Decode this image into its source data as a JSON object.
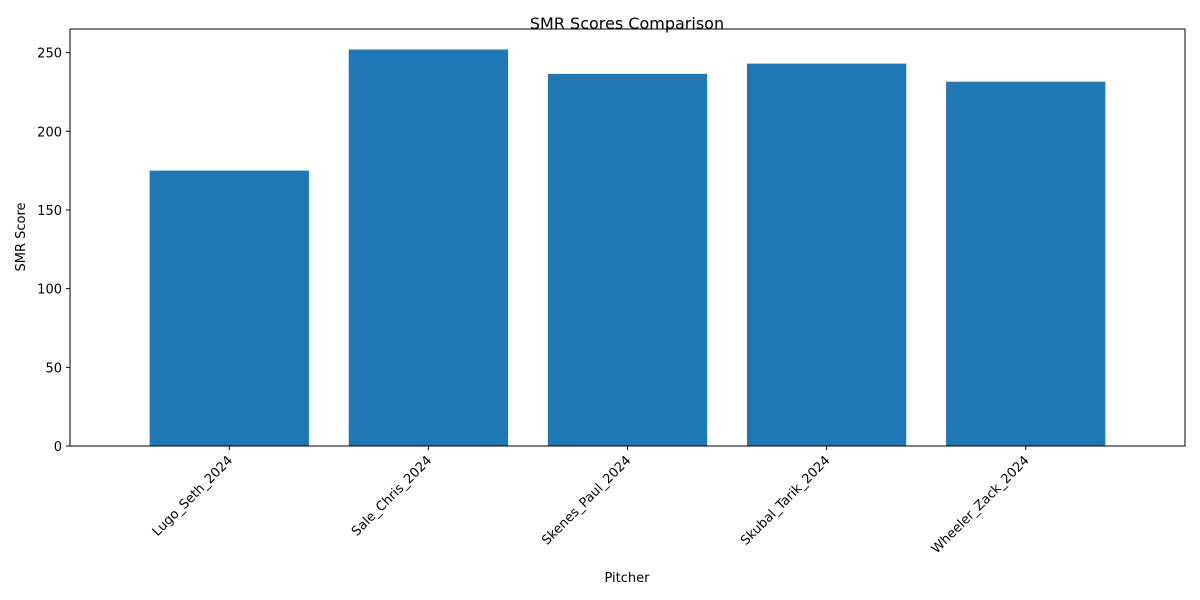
{
  "chart_data": {
    "type": "bar",
    "title": "SMR Scores Comparison",
    "xlabel": "Pitcher",
    "ylabel": "SMR Score",
    "categories": [
      "Lugo_Seth_2024",
      "Sale_Chris_2024",
      "Skenes_Paul_2024",
      "Skubal_Tarik_2024",
      "Wheeler_Zack_2024"
    ],
    "values": [
      175,
      252,
      236.5,
      243,
      231.5
    ],
    "ylim": [
      0,
      265
    ],
    "yticks": [
      0,
      50,
      100,
      150,
      200,
      250
    ],
    "grid": false,
    "bar_color": "#1f77b4"
  }
}
